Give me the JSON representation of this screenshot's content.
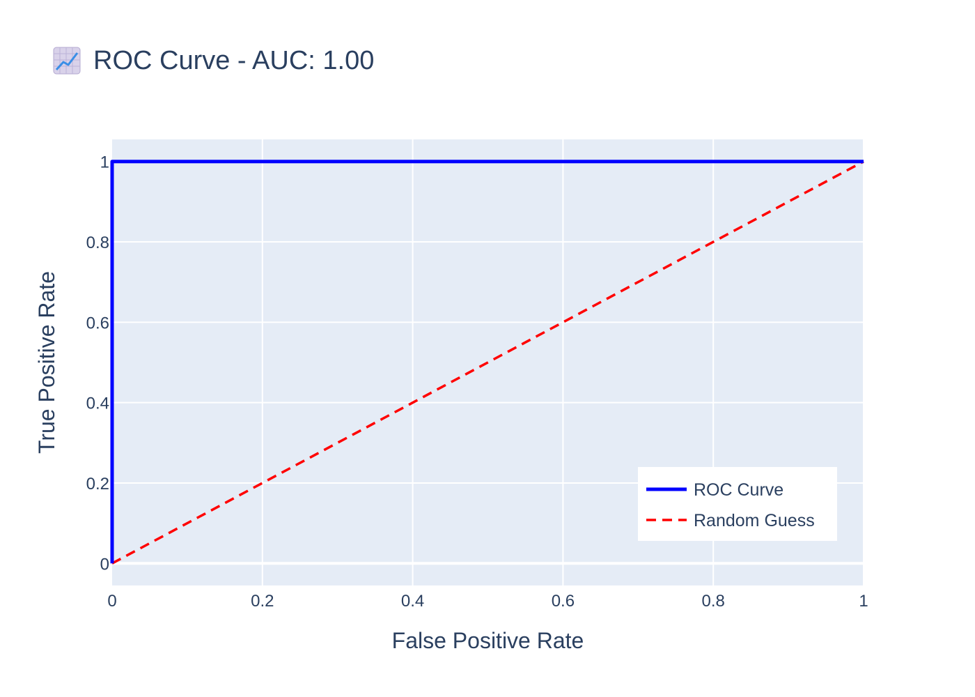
{
  "chart_data": {
    "type": "line",
    "title": "ROC Curve - AUC: 1.00",
    "title_icon": "chart-increasing-icon",
    "xlabel": "False Positive Rate",
    "ylabel": "True Positive Rate",
    "xlim": [
      0,
      1
    ],
    "ylim": [
      -0.055,
      1.055
    ],
    "xticks": [
      0,
      0.2,
      0.4,
      0.6,
      0.8,
      1
    ],
    "xtick_labels": [
      "0",
      "0.2",
      "0.4",
      "0.6",
      "0.8",
      "1"
    ],
    "yticks": [
      0,
      0.2,
      0.4,
      0.6,
      0.8,
      1
    ],
    "ytick_labels": [
      "0",
      "0.2",
      "0.4",
      "0.6",
      "0.8",
      "1"
    ],
    "grid": true,
    "legend_position": "bottom-right",
    "series": [
      {
        "name": "ROC Curve",
        "color": "#0000ff",
        "dash": "solid",
        "x": [
          0,
          0,
          1
        ],
        "y": [
          0,
          1,
          1
        ]
      },
      {
        "name": "Random Guess",
        "color": "#ff0000",
        "dash": "dash",
        "x": [
          0,
          1
        ],
        "y": [
          0,
          1
        ]
      }
    ],
    "plot_background": "#e5ecf6",
    "text_color": "#2a3f5f"
  }
}
